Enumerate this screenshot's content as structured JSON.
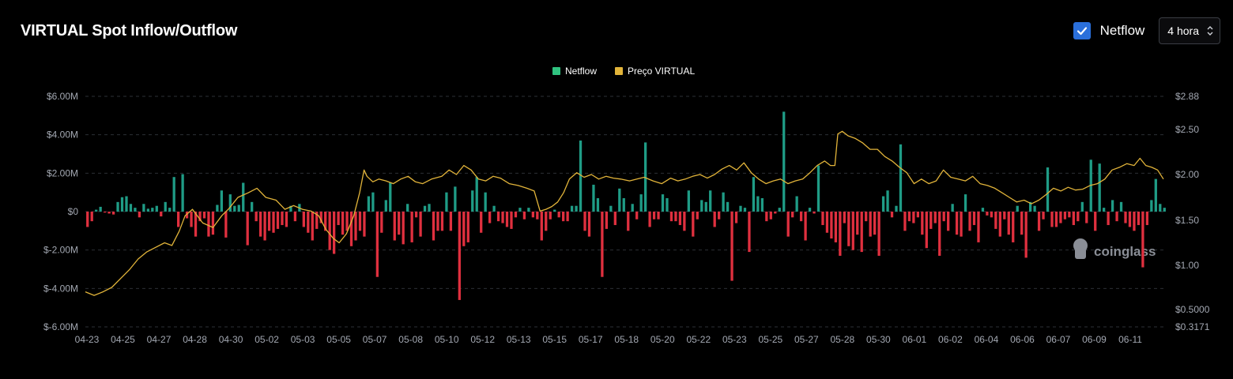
{
  "title": "VIRTUAL Spot Inflow/Outflow",
  "controls": {
    "netflow_checkbox_label": "Netflow",
    "interval_value": "4 hora"
  },
  "watermark": "coinglass",
  "colors": {
    "positive": "#1f9c86",
    "negative": "#e0303f",
    "price": "#e2b43a",
    "legend_netflow": "#2fc27f",
    "legend_price": "#e2b43a"
  },
  "chart_data": {
    "type": "bar",
    "title": "VIRTUAL Spot Inflow/Outflow",
    "legend": [
      "Netflow",
      "Preço VIRTUAL"
    ],
    "legend_position": "top-center",
    "grid": true,
    "x_tick_labels": [
      "04-23",
      "04-25",
      "04-27",
      "04-28",
      "04-30",
      "05-02",
      "05-03",
      "05-05",
      "05-07",
      "05-08",
      "05-10",
      "05-12",
      "05-13",
      "05-15",
      "05-17",
      "05-18",
      "05-20",
      "05-22",
      "05-23",
      "05-25",
      "05-27",
      "05-28",
      "05-30",
      "06-01",
      "06-02",
      "06-04",
      "06-06",
      "06-07",
      "06-09",
      "06-11"
    ],
    "y_left": {
      "ylim": [
        -6000000,
        6000000
      ],
      "ticks": [
        -6000000,
        -4000000,
        -2000000,
        0,
        2000000,
        4000000,
        6000000
      ],
      "tick_labels": [
        "$-6.00M",
        "$-4.00M",
        "$-2.00M",
        "$0",
        "$2.00M",
        "$4.00M",
        "$6.00M"
      ]
    },
    "y_right": {
      "ylim": [
        0.3171,
        2.88
      ],
      "ticks": [
        0.3171,
        0.5,
        1.0,
        1.5,
        2.0,
        2.5,
        2.88
      ],
      "tick_labels": [
        "$0.3171",
        "$0.5000",
        "$1.00",
        "$1.50",
        "$2.00",
        "$2.50",
        "$2.88"
      ]
    },
    "series": [
      {
        "name": "Netflow",
        "type": "bar",
        "unit": "USD",
        "values": [
          -800000,
          -500000,
          100000,
          250000,
          -50000,
          -100000,
          -150000,
          500000,
          750000,
          800000,
          400000,
          200000,
          -300000,
          400000,
          150000,
          200000,
          300000,
          -250000,
          500000,
          200000,
          1800000,
          -800000,
          1950000,
          -350000,
          -800000,
          -1300000,
          -500000,
          -350000,
          -1300000,
          -1200000,
          350000,
          1100000,
          -1350000,
          900000,
          300000,
          350000,
          1500000,
          -1750000,
          500000,
          -500000,
          -1300000,
          -1500000,
          -1000000,
          -1100000,
          -900000,
          -700000,
          -800000,
          300000,
          -500000,
          400000,
          -800000,
          -1100000,
          -1500000,
          -900000,
          -600000,
          -1000000,
          -2000000,
          -2200000,
          -700000,
          -1200000,
          -1000000,
          -1800000,
          -1500000,
          -1000000,
          -1300000,
          800000,
          1000000,
          -3400000,
          -1100000,
          600000,
          1500000,
          -1500000,
          -1200000,
          -1700000,
          400000,
          -1600000,
          -300000,
          -1300000,
          300000,
          400000,
          -1500000,
          -1000000,
          -1000000,
          1000000,
          -1000000,
          1300000,
          -4600000,
          -1800000,
          -1600000,
          1100000,
          1800000,
          -1100000,
          1000000,
          -600000,
          300000,
          -500000,
          -600000,
          -800000,
          -900000,
          -300000,
          200000,
          -400000,
          200000,
          -300000,
          -400000,
          -1500000,
          -1000000,
          -400000,
          100000,
          -300000,
          -500000,
          -500000,
          300000,
          300000,
          3700000,
          -1000000,
          -1300000,
          1400000,
          700000,
          -3400000,
          -900000,
          300000,
          -700000,
          1200000,
          700000,
          -1000000,
          400000,
          -400000,
          900000,
          3600000,
          -800000,
          -400000,
          -400000,
          900000,
          700000,
          -500000,
          -500000,
          -700000,
          -1000000,
          1100000,
          -1300000,
          -400000,
          600000,
          500000,
          1100000,
          -800000,
          -400000,
          1000000,
          500000,
          -3600000,
          -600000,
          300000,
          200000,
          -2100000,
          1800000,
          800000,
          700000,
          -500000,
          -400000,
          -100000,
          200000,
          5200000,
          -1300000,
          -300000,
          800000,
          -500000,
          -1500000,
          200000,
          -100000,
          2400000,
          -700000,
          -1100000,
          -1400000,
          -1600000,
          -2300000,
          -600000,
          -1800000,
          -2000000,
          -1200000,
          -2100000,
          -500000,
          -1300000,
          -1200000,
          -2300000,
          800000,
          1100000,
          -300000,
          300000,
          3500000,
          -1000000,
          -500000,
          -600000,
          -300000,
          -1200000,
          -1900000,
          -900000,
          -600000,
          -2300000,
          -500000,
          -1000000,
          400000,
          -1200000,
          -1300000,
          900000,
          -1000000,
          -700000,
          -1600000,
          200000,
          -200000,
          -300000,
          -900000,
          -1300000,
          -400000,
          -1200000,
          -1600000,
          300000,
          -1200000,
          -2400000,
          500000,
          300000,
          -1000000,
          -400000,
          2300000,
          -800000,
          -800000,
          -600000,
          -400000,
          -300000,
          -700000,
          -500000,
          500000,
          -600000,
          2700000,
          -1000000,
          2500000,
          200000,
          -700000,
          600000,
          -500000,
          500000,
          -600000,
          -800000,
          -1000000,
          -700000,
          -2900000,
          -700000,
          600000,
          1700000,
          400000,
          200000
        ]
      },
      {
        "name": "Preço VIRTUAL",
        "type": "line",
        "unit": "USD",
        "points": [
          [
            0,
            0.7
          ],
          [
            12,
            0.66
          ],
          [
            24,
            0.7
          ],
          [
            36,
            0.75
          ],
          [
            48,
            0.85
          ],
          [
            60,
            0.95
          ],
          [
            72,
            1.07
          ],
          [
            84,
            1.15
          ],
          [
            96,
            1.2
          ],
          [
            108,
            1.25
          ],
          [
            118,
            1.22
          ],
          [
            128,
            1.38
          ],
          [
            136,
            1.55
          ],
          [
            146,
            1.62
          ],
          [
            160,
            1.47
          ],
          [
            174,
            1.42
          ],
          [
            186,
            1.55
          ],
          [
            196,
            1.63
          ],
          [
            208,
            1.75
          ],
          [
            222,
            1.8
          ],
          [
            234,
            1.85
          ],
          [
            246,
            1.75
          ],
          [
            260,
            1.72
          ],
          [
            272,
            1.62
          ],
          [
            284,
            1.66
          ],
          [
            296,
            1.62
          ],
          [
            308,
            1.6
          ],
          [
            318,
            1.55
          ],
          [
            328,
            1.4
          ],
          [
            338,
            1.3
          ],
          [
            346,
            1.25
          ],
          [
            356,
            1.35
          ],
          [
            366,
            1.55
          ],
          [
            374,
            1.8
          ],
          [
            380,
            2.05
          ],
          [
            384,
            1.98
          ],
          [
            392,
            1.92
          ],
          [
            400,
            1.95
          ],
          [
            410,
            1.93
          ],
          [
            420,
            1.9
          ],
          [
            430,
            1.95
          ],
          [
            440,
            1.98
          ],
          [
            450,
            1.92
          ],
          [
            460,
            1.9
          ],
          [
            472,
            1.95
          ],
          [
            486,
            1.98
          ],
          [
            496,
            2.05
          ],
          [
            506,
            2.0
          ],
          [
            516,
            2.1
          ],
          [
            526,
            2.05
          ],
          [
            536,
            1.95
          ],
          [
            546,
            1.93
          ],
          [
            556,
            1.98
          ],
          [
            566,
            1.96
          ],
          [
            578,
            1.9
          ],
          [
            590,
            1.88
          ],
          [
            602,
            1.85
          ],
          [
            612,
            1.82
          ],
          [
            620,
            1.6
          ],
          [
            628,
            1.62
          ],
          [
            636,
            1.65
          ],
          [
            644,
            1.7
          ],
          [
            652,
            1.8
          ],
          [
            660,
            1.95
          ],
          [
            670,
            2.02
          ],
          [
            680,
            1.97
          ],
          [
            690,
            2.0
          ],
          [
            700,
            1.95
          ],
          [
            710,
            1.98
          ],
          [
            720,
            1.96
          ],
          [
            730,
            1.95
          ],
          [
            742,
            1.93
          ],
          [
            752,
            1.95
          ],
          [
            762,
            1.97
          ],
          [
            774,
            1.93
          ],
          [
            786,
            1.9
          ],
          [
            798,
            1.96
          ],
          [
            808,
            1.93
          ],
          [
            818,
            1.95
          ],
          [
            828,
            1.98
          ],
          [
            838,
            2.0
          ],
          [
            848,
            1.96
          ],
          [
            858,
            2.0
          ],
          [
            868,
            2.06
          ],
          [
            878,
            2.1
          ],
          [
            888,
            2.05
          ],
          [
            898,
            2.13
          ],
          [
            908,
            2.02
          ],
          [
            918,
            1.95
          ],
          [
            928,
            1.9
          ],
          [
            938,
            1.93
          ],
          [
            948,
            1.95
          ],
          [
            958,
            1.9
          ],
          [
            968,
            1.93
          ],
          [
            978,
            1.95
          ],
          [
            988,
            2.02
          ],
          [
            998,
            2.1
          ],
          [
            1008,
            2.15
          ],
          [
            1016,
            2.1
          ],
          [
            1022,
            2.1
          ],
          [
            1026,
            2.45
          ],
          [
            1032,
            2.48
          ],
          [
            1040,
            2.43
          ],
          [
            1050,
            2.4
          ],
          [
            1060,
            2.35
          ],
          [
            1070,
            2.28
          ],
          [
            1080,
            2.28
          ],
          [
            1090,
            2.2
          ],
          [
            1100,
            2.15
          ],
          [
            1110,
            2.08
          ],
          [
            1120,
            2.02
          ],
          [
            1130,
            1.9
          ],
          [
            1140,
            1.95
          ],
          [
            1150,
            1.9
          ],
          [
            1160,
            1.93
          ],
          [
            1170,
            2.05
          ],
          [
            1180,
            1.97
          ],
          [
            1190,
            1.95
          ],
          [
            1200,
            1.93
          ],
          [
            1210,
            1.98
          ],
          [
            1220,
            1.9
          ],
          [
            1230,
            1.88
          ],
          [
            1240,
            1.85
          ],
          [
            1250,
            1.8
          ],
          [
            1260,
            1.75
          ],
          [
            1270,
            1.7
          ],
          [
            1280,
            1.72
          ],
          [
            1290,
            1.68
          ],
          [
            1300,
            1.72
          ],
          [
            1310,
            1.78
          ],
          [
            1320,
            1.85
          ],
          [
            1330,
            1.82
          ],
          [
            1340,
            1.86
          ],
          [
            1350,
            1.83
          ],
          [
            1360,
            1.84
          ],
          [
            1370,
            1.88
          ],
          [
            1380,
            1.9
          ],
          [
            1390,
            1.95
          ],
          [
            1400,
            2.05
          ],
          [
            1410,
            2.08
          ],
          [
            1420,
            2.12
          ],
          [
            1430,
            2.1
          ],
          [
            1438,
            2.18
          ],
          [
            1446,
            2.1
          ],
          [
            1454,
            2.08
          ],
          [
            1462,
            2.05
          ],
          [
            1470,
            1.95
          ]
        ]
      }
    ]
  }
}
